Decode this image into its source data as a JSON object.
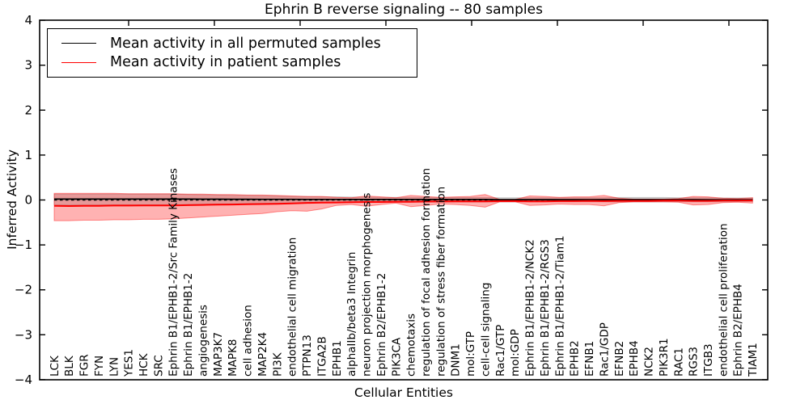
{
  "chart_data": {
    "type": "line",
    "title": "Ephrin B reverse signaling -- 80 samples",
    "xlabel": "Cellular Entities",
    "ylabel": "Inferred Activity",
    "ylim": [
      -4,
      4
    ],
    "yticks": [
      4,
      3,
      2,
      1,
      0,
      -1,
      -2,
      -3,
      -4
    ],
    "grid": false,
    "legend_position": "upper left",
    "zero_line": {
      "style": "dashed",
      "color": "#000000",
      "y": 0
    },
    "categories": [
      "LCK",
      "BLK",
      "FGR",
      "FYN",
      "LYN",
      "YES1",
      "HCK",
      "SRC",
      "Ephrin B1/EPHB1-2/Src Family Kinases",
      "Ephrin B1/EPHB1-2",
      "angiogenesis",
      "MAP3K7",
      "MAPK8",
      "cell adhesion",
      "MAP2K4",
      "PI3K",
      "endothelial cell migration",
      "PTPN13",
      "ITGA2B",
      "EPHB1",
      "alphaIIb/beta3 Integrin",
      "neuron projection morphogenesis",
      "Ephrin B2/EPHB1-2",
      "PIK3CA",
      "chemotaxis",
      "regulation of focal adhesion formation",
      "regulation of stress fiber formation",
      "DNM1",
      "mol:GTP",
      "cell-cell signaling",
      "Rac1/GTP",
      "mol:GDP",
      "Ephrin B1/EPHB1-2/NCK2",
      "Ephrin B1/EPHB1-2/RGS3",
      "Ephrin B1/EPHB1-2/Tiam1",
      "EPHB2",
      "EFNB1",
      "Rac1/GDP",
      "EFNB2",
      "EPHB4",
      "NCK2",
      "PIK3R1",
      "RAC1",
      "RGS3",
      "ITGB3",
      "endothelial cell proliferation",
      "Ephrin B2/EPHB4",
      "TIAM1"
    ],
    "series": [
      {
        "name": "Mean activity in all permuted samples",
        "color": "#000000",
        "band_color": "rgba(127,127,127,0.28)",
        "band_edge_color": "rgba(127,127,127,0.38)",
        "values": [
          0.02,
          0.02,
          0.02,
          0.02,
          0.02,
          0.02,
          0.02,
          0.02,
          0.02,
          0.02,
          0.018,
          0.018,
          0.016,
          0.016,
          0.015,
          0.015,
          0.014,
          0.013,
          0.012,
          0.012,
          0.011,
          0.011,
          0.01,
          0.01,
          0.01,
          0.01,
          0.01,
          0.01,
          0.01,
          0.01,
          0.008,
          0.008,
          0.008,
          0.008,
          0.008,
          0.008,
          0.008,
          0.008,
          0.007,
          0.007,
          0.007,
          0.007,
          0.007,
          0.007,
          0.006,
          0.006,
          0.006,
          0.005
        ],
        "band_upper": [
          0.13,
          0.13,
          0.13,
          0.13,
          0.13,
          0.13,
          0.13,
          0.13,
          0.13,
          0.12,
          0.115,
          0.11,
          0.105,
          0.1,
          0.095,
          0.09,
          0.08,
          0.075,
          0.07,
          0.07,
          0.065,
          0.065,
          0.06,
          0.06,
          0.06,
          0.06,
          0.055,
          0.055,
          0.055,
          0.055,
          0.05,
          0.05,
          0.05,
          0.05,
          0.05,
          0.05,
          0.05,
          0.05,
          0.055,
          0.055,
          0.055,
          0.055,
          0.05,
          0.05,
          0.05,
          0.045,
          0.045,
          0.045
        ],
        "band_lower": [
          -0.11,
          -0.11,
          -0.11,
          -0.11,
          -0.11,
          -0.11,
          -0.11,
          -0.11,
          -0.11,
          -0.1,
          -0.095,
          -0.09,
          -0.085,
          -0.08,
          -0.075,
          -0.07,
          -0.065,
          -0.06,
          -0.06,
          -0.055,
          -0.055,
          -0.05,
          -0.05,
          -0.05,
          -0.05,
          -0.05,
          -0.045,
          -0.045,
          -0.045,
          -0.045,
          -0.045,
          -0.045,
          -0.04,
          -0.04,
          -0.04,
          -0.04,
          -0.04,
          -0.04,
          -0.045,
          -0.045,
          -0.045,
          -0.045,
          -0.04,
          -0.04,
          -0.04,
          -0.04,
          -0.035,
          -0.035
        ]
      },
      {
        "name": "Mean activity in patient samples",
        "color": "#ff0000",
        "band_color": "rgba(255,0,0,0.3)",
        "band_edge_color": "rgba(255,0,0,0.42)",
        "values": [
          -0.13,
          -0.135,
          -0.13,
          -0.13,
          -0.125,
          -0.125,
          -0.12,
          -0.12,
          -0.12,
          -0.115,
          -0.11,
          -0.105,
          -0.1,
          -0.095,
          -0.09,
          -0.085,
          -0.075,
          -0.065,
          -0.06,
          -0.055,
          -0.05,
          -0.045,
          -0.045,
          -0.04,
          -0.04,
          -0.035,
          -0.035,
          -0.03,
          -0.03,
          -0.03,
          -0.025,
          -0.025,
          -0.03,
          -0.03,
          -0.025,
          -0.025,
          -0.02,
          -0.025,
          -0.02,
          -0.02,
          -0.02,
          -0.015,
          -0.015,
          -0.02,
          -0.02,
          -0.015,
          -0.015,
          -0.01
        ],
        "band_upper": [
          0.15,
          0.15,
          0.15,
          0.15,
          0.15,
          0.14,
          0.14,
          0.14,
          0.14,
          0.13,
          0.13,
          0.12,
          0.12,
          0.11,
          0.11,
          0.1,
          0.09,
          0.08,
          0.08,
          0.06,
          0.05,
          0.09,
          0.07,
          0.05,
          0.1,
          0.08,
          0.06,
          0.07,
          0.08,
          0.12,
          0.01,
          0.01,
          0.09,
          0.08,
          0.06,
          0.07,
          0.07,
          0.1,
          0.04,
          0.02,
          0.02,
          0.02,
          0.03,
          0.08,
          0.07,
          0.04,
          0.03,
          0.05
        ],
        "band_lower": [
          -0.46,
          -0.46,
          -0.45,
          -0.45,
          -0.44,
          -0.44,
          -0.43,
          -0.43,
          -0.42,
          -0.4,
          -0.38,
          -0.36,
          -0.34,
          -0.32,
          -0.3,
          -0.26,
          -0.24,
          -0.25,
          -0.2,
          -0.12,
          -0.1,
          -0.14,
          -0.1,
          -0.07,
          -0.15,
          -0.12,
          -0.09,
          -0.1,
          -0.12,
          -0.16,
          -0.04,
          -0.04,
          -0.12,
          -0.11,
          -0.09,
          -0.1,
          -0.1,
          -0.13,
          -0.06,
          -0.04,
          -0.04,
          -0.04,
          -0.05,
          -0.11,
          -0.1,
          -0.06,
          -0.05,
          -0.07
        ]
      }
    ]
  }
}
